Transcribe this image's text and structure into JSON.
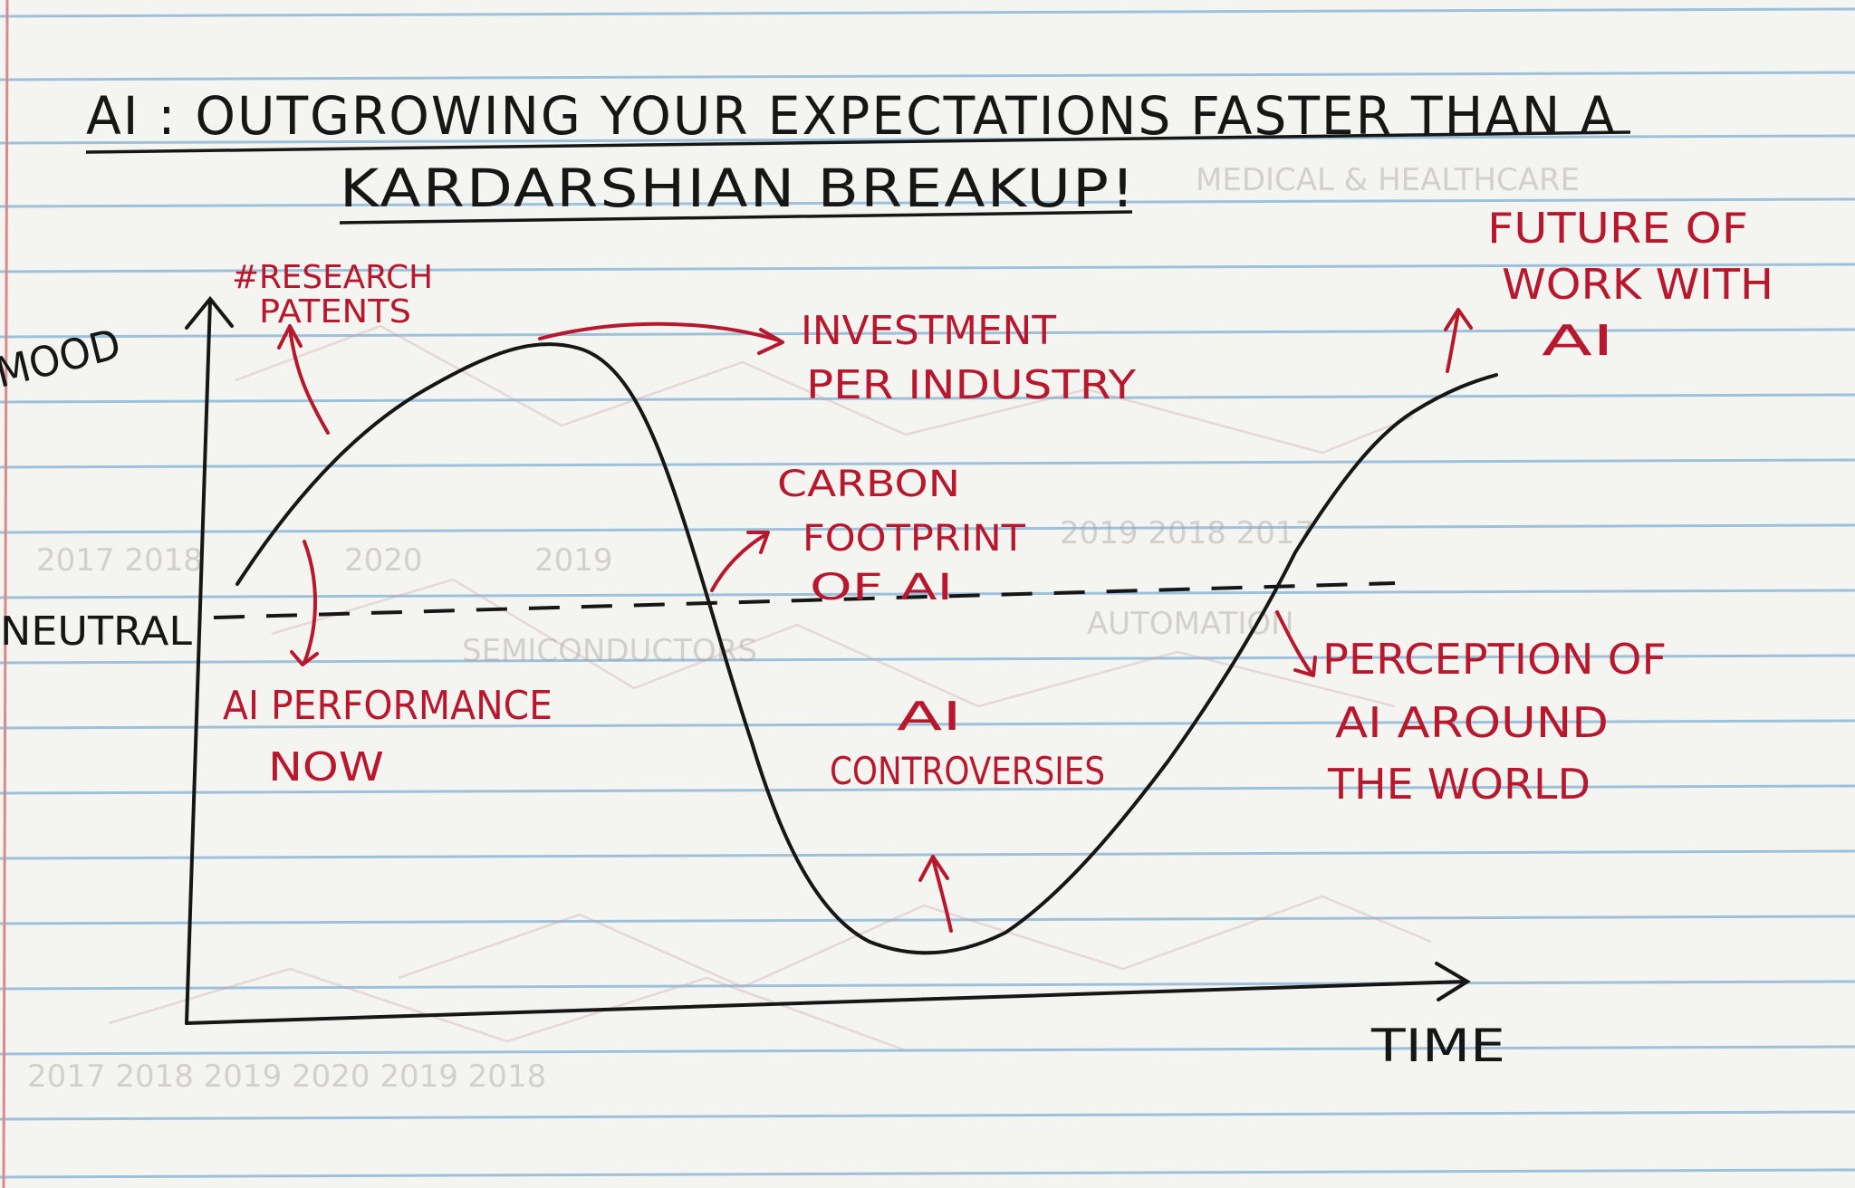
{
  "title": {
    "line1": "AI : OUTGROWING YOUR EXPECTATIONS FASTER THAN A",
    "line2": "KARDARSHIAN BREAKUP!"
  },
  "axes": {
    "y_label": "MOOD",
    "x_label": "TIME",
    "neutral_label": "NEUTRAL"
  },
  "annotations": {
    "research": [
      "#RESEARCH",
      "PATENTS"
    ],
    "ai_performance": [
      "AI PERFORMANCE",
      "NOW"
    ],
    "investment": [
      "INVESTMENT",
      "PER INDUSTRY"
    ],
    "carbon": [
      "CARBON",
      "FOOTPRINT",
      "OF AI"
    ],
    "controversies": [
      "AI",
      "CONTROVERSIES"
    ],
    "future": [
      "FUTURE OF",
      "WORK WITH",
      "AI"
    ],
    "perception": [
      "PERCEPTION OF",
      "AI AROUND",
      "THE WORLD"
    ]
  },
  "colors": {
    "paper": "#f4f4f1",
    "ruled_line": "#8fb9d8",
    "margin_line": "#d98a8a",
    "ink_black": "#161616",
    "ink_red": "#b8182e"
  }
}
